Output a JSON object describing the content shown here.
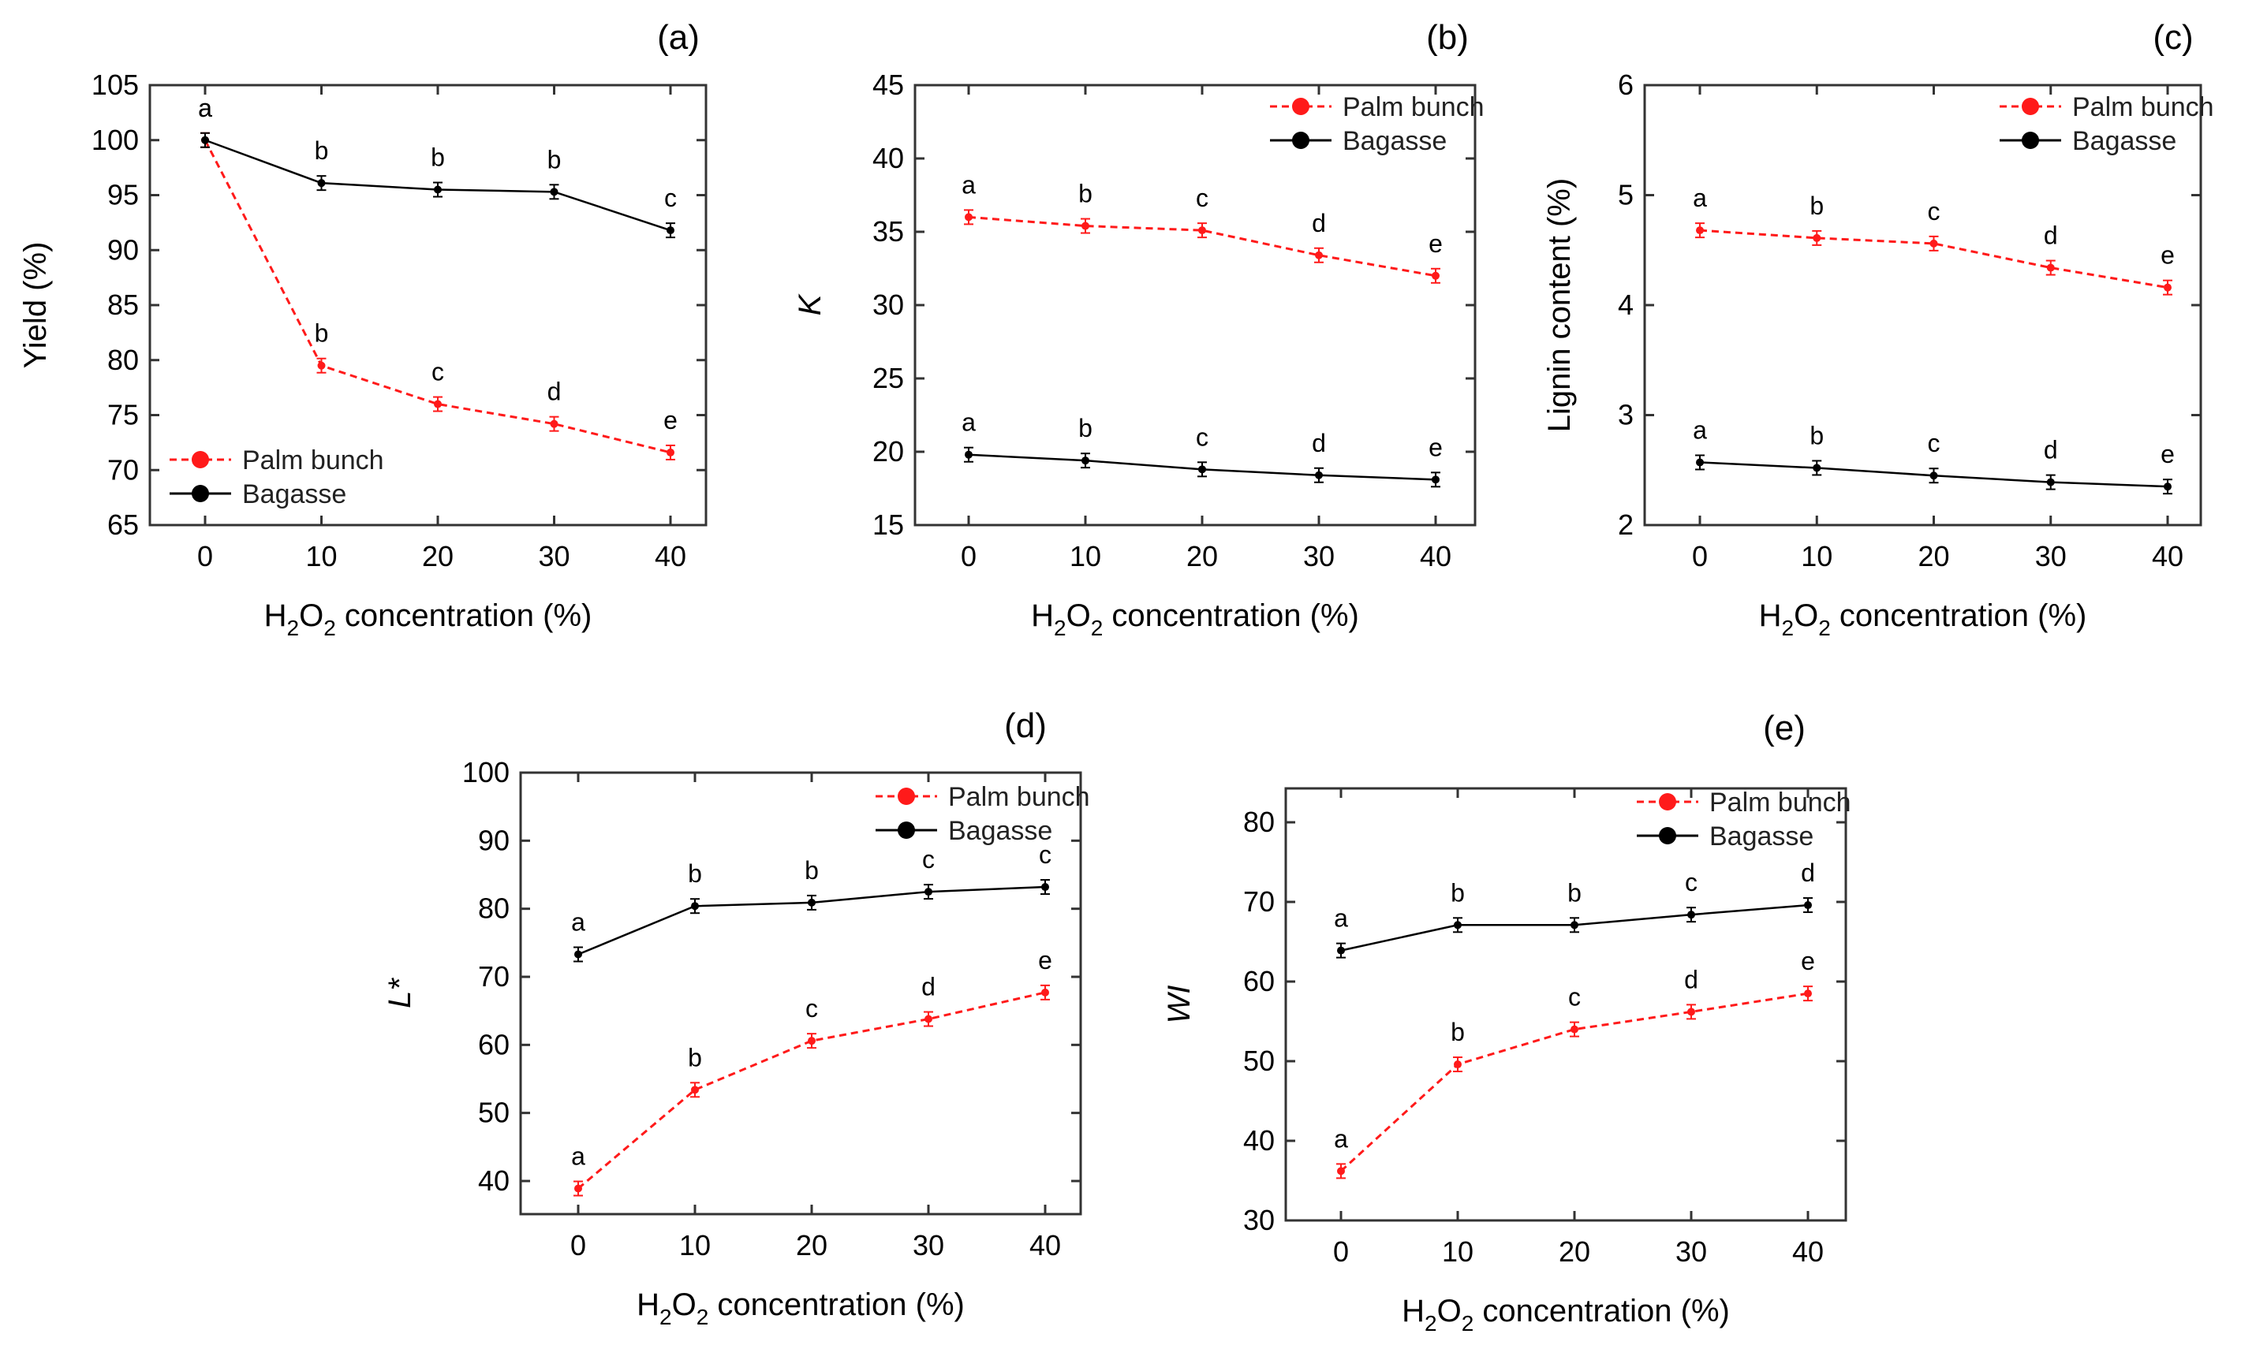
{
  "x_axis": {
    "title_prefix": "H",
    "sub1": "2",
    "mid": "O",
    "sub2": "2",
    "title_suffix": " concentration (%)"
  },
  "legend": {
    "palm": "Palm bunch",
    "bagasse": "Bagasse"
  },
  "colors": {
    "palm": "#ff1a1a",
    "bagasse": "#000000"
  },
  "chart_data": [
    {
      "type": "line",
      "id": "a",
      "panel_label": "(a)",
      "ylabel": "Yield (%)",
      "ylabel_italic": false,
      "x": [
        0,
        10,
        20,
        30,
        40
      ],
      "xticks": [
        "0",
        "10",
        "20",
        "30",
        "40"
      ],
      "ylim": [
        65,
        105
      ],
      "yticks": [
        65,
        70,
        75,
        80,
        85,
        90,
        95,
        100,
        105
      ],
      "legend_position": "bottom-left",
      "series": [
        {
          "name": "Palm bunch",
          "values": [
            100,
            79.5,
            76,
            74.2,
            71.6
          ],
          "letters": [
            "a",
            "b",
            "c",
            "d",
            "e"
          ]
        },
        {
          "name": "Bagasse",
          "values": [
            100,
            96.1,
            95.5,
            95.3,
            91.8
          ],
          "letters": [
            "a",
            "b",
            "b",
            "b",
            "c"
          ]
        }
      ]
    },
    {
      "type": "line",
      "id": "b",
      "panel_label": "(b)",
      "ylabel": "K",
      "ylabel_italic": true,
      "x": [
        0,
        10,
        20,
        30,
        40
      ],
      "xticks": [
        "0",
        "10",
        "20",
        "30",
        "40"
      ],
      "ylim": [
        15,
        45
      ],
      "yticks": [
        15,
        20,
        25,
        30,
        35,
        40,
        45
      ],
      "legend_position": "top-right",
      "series": [
        {
          "name": "Palm bunch",
          "values": [
            36,
            35.4,
            35.1,
            33.4,
            32
          ],
          "letters": [
            "a",
            "b",
            "c",
            "d",
            "e"
          ]
        },
        {
          "name": "Bagasse",
          "values": [
            19.8,
            19.4,
            18.8,
            18.4,
            18.1
          ],
          "letters": [
            "a",
            "b",
            "c",
            "d",
            "e"
          ]
        }
      ]
    },
    {
      "type": "line",
      "id": "c",
      "panel_label": "(c)",
      "ylabel": "Lignin content (%)",
      "ylabel_italic": false,
      "x": [
        0,
        10,
        20,
        30,
        40
      ],
      "xticks": [
        "0",
        "10",
        "20",
        "30",
        "40"
      ],
      "ylim": [
        2,
        6
      ],
      "yticks": [
        2,
        3,
        4,
        5,
        6
      ],
      "legend_position": "top-right",
      "series": [
        {
          "name": "Palm bunch",
          "values": [
            4.68,
            4.61,
            4.56,
            4.34,
            4.16
          ],
          "letters": [
            "a",
            "b",
            "c",
            "d",
            "e"
          ]
        },
        {
          "name": "Bagasse",
          "values": [
            2.57,
            2.52,
            2.45,
            2.39,
            2.35
          ],
          "letters": [
            "a",
            "b",
            "c",
            "d",
            "e"
          ]
        }
      ]
    },
    {
      "type": "line",
      "id": "d",
      "panel_label": "(d)",
      "ylabel": "L*",
      "ylabel_italic": true,
      "x": [
        0,
        10,
        20,
        30,
        40
      ],
      "xticks": [
        "0",
        "10",
        "20",
        "30",
        "40"
      ],
      "ylim": [
        35,
        100
      ],
      "yticks": [
        40,
        50,
        60,
        70,
        80,
        90,
        100
      ],
      "legend_position": "top-right",
      "series": [
        {
          "name": "Palm bunch",
          "values": [
            38.9,
            53.4,
            60.6,
            63.8,
            67.7
          ],
          "letters": [
            "a",
            "b",
            "c",
            "d",
            "e"
          ]
        },
        {
          "name": "Bagasse",
          "values": [
            73.3,
            80.4,
            80.9,
            82.5,
            83.2
          ],
          "letters": [
            "a",
            "b",
            "b",
            "c",
            "c"
          ]
        }
      ]
    },
    {
      "type": "line",
      "id": "e",
      "panel_label": "(e)",
      "ylabel": "WI",
      "ylabel_italic": true,
      "x": [
        0,
        10,
        20,
        30,
        40
      ],
      "xticks": [
        "0",
        "10",
        "20",
        "30",
        "40"
      ],
      "ylim": [
        30,
        85
      ],
      "yticks": [
        30,
        40,
        50,
        60,
        70,
        80
      ],
      "legend_position": "top-right",
      "series": [
        {
          "name": "Palm bunch",
          "values": [
            36.2,
            49.6,
            54,
            56.2,
            58.5
          ],
          "letters": [
            "a",
            "b",
            "c",
            "d",
            "e"
          ]
        },
        {
          "name": "Bagasse",
          "values": [
            63.9,
            67.1,
            67.1,
            68.4,
            69.6
          ],
          "letters": [
            "a",
            "b",
            "b",
            "c",
            "d"
          ]
        }
      ]
    }
  ]
}
